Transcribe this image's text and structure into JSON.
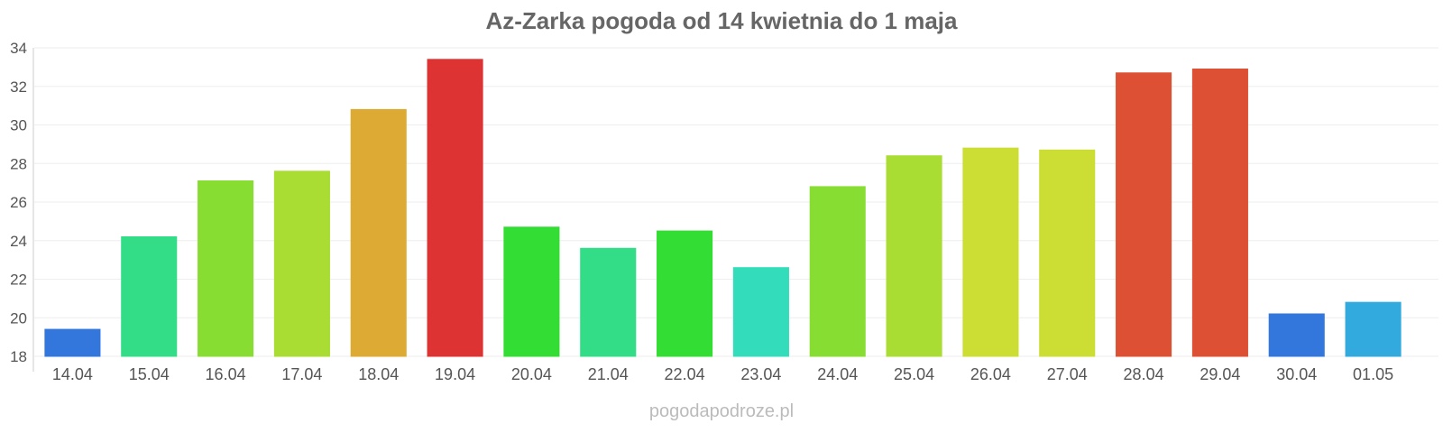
{
  "chart_data": {
    "type": "bar",
    "title": "Az-Zarka pogoda od 14 kwietnia do 1 maja",
    "xlabel": "",
    "ylabel": "",
    "ylim": [
      18,
      34
    ],
    "yticks": [
      "18",
      "20",
      "22",
      "24",
      "26",
      "28",
      "30",
      "32",
      "34"
    ],
    "grid": true,
    "categories": [
      "14.04",
      "15.04",
      "16.04",
      "17.04",
      "18.04",
      "19.04",
      "20.04",
      "21.04",
      "22.04",
      "23.04",
      "24.04",
      "25.04",
      "26.04",
      "27.04",
      "28.04",
      "29.04",
      "30.04",
      "01.05"
    ],
    "values": [
      19.4,
      24.2,
      27.1,
      27.6,
      30.8,
      33.4,
      24.7,
      23.6,
      24.5,
      22.6,
      26.8,
      28.4,
      28.8,
      28.7,
      32.7,
      32.9,
      20.2,
      20.8
    ],
    "colors": [
      "#3377dd",
      "#33dd88",
      "#88dd33",
      "#aadd33",
      "#ddaa33",
      "#dd3333",
      "#33dd33",
      "#33dd88",
      "#33dd33",
      "#33ddbb",
      "#88dd33",
      "#aadd33",
      "#ccdd33",
      "#ccdd33",
      "#dd5033",
      "#dd5033",
      "#3377dd",
      "#33aadd"
    ]
  },
  "footer": {
    "credit": "pogodapodroze.pl"
  }
}
